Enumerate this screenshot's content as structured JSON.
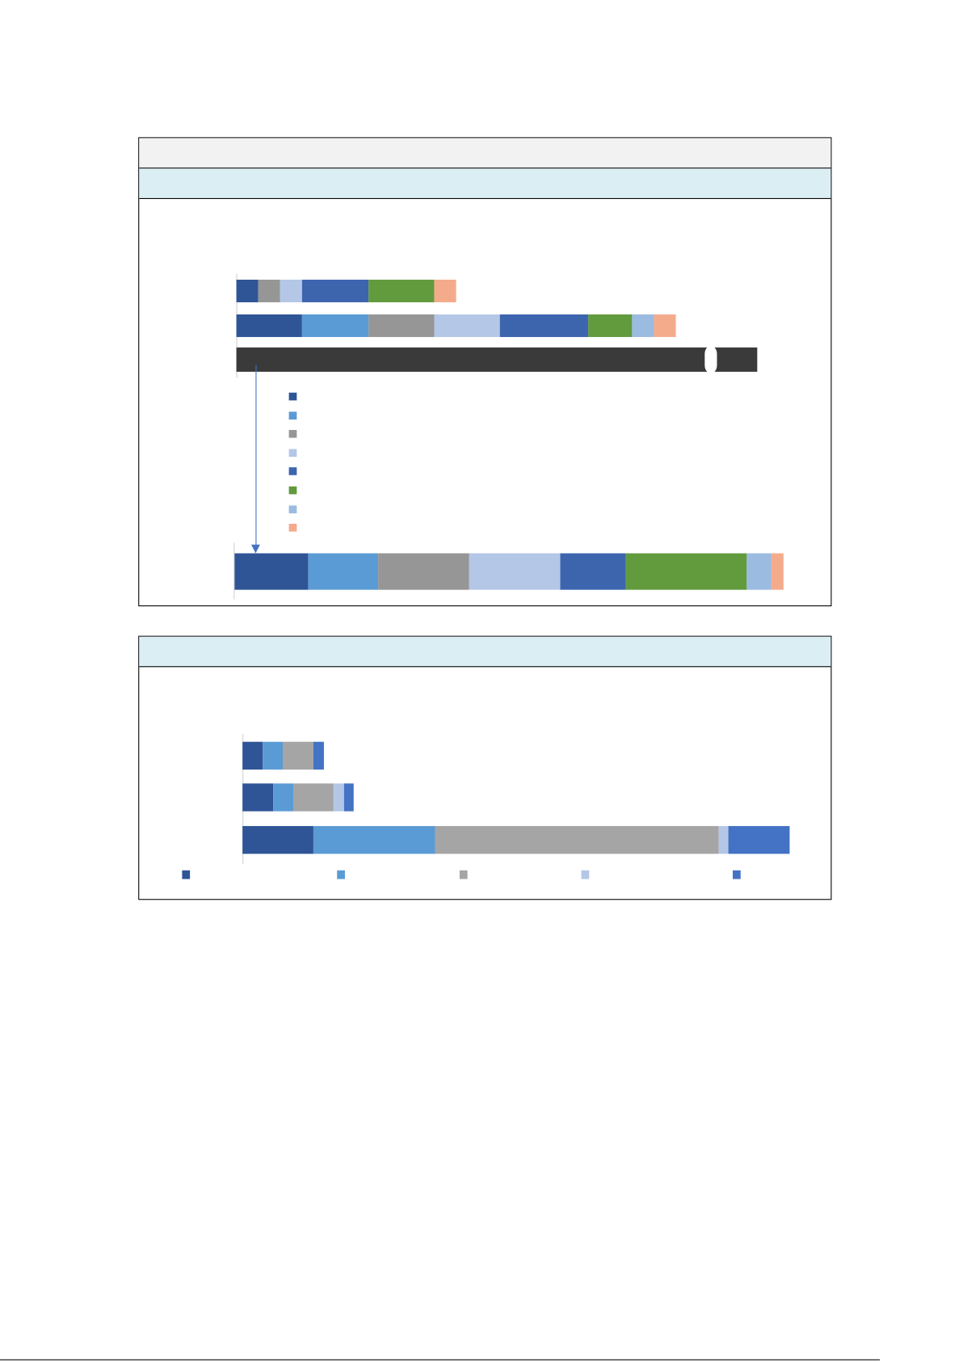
{
  "colors": {
    "s1": "#2F5597",
    "s2": "#5B9BD5",
    "s3": "#969696",
    "s4": "#B4C7E7",
    "s5": "#3D65AE",
    "s6": "#629A3E",
    "s7": "#9BBBE0",
    "s8": "#F4AB8C",
    "total": "#3A3A3A",
    "header_bg": "#F2F2F2",
    "band_bg": "#DBEEF4",
    "c2_s3": "#A5A5A5",
    "c2_s5": "#4472C4",
    "arrow": "#4472C4"
  },
  "chart_data": [
    {
      "type": "bar",
      "orientation": "horizontal-stacked",
      "series_colors": [
        "#2F5597",
        "#5B9BD5",
        "#969696",
        "#B4C7E7",
        "#3D65AE",
        "#629A3E",
        "#9BBBE0",
        "#F4AB8C"
      ],
      "bars": [
        {
          "values": [
            1,
            0,
            1,
            1,
            3,
            3,
            0,
            1
          ]
        },
        {
          "values": [
            3,
            3,
            3,
            3,
            4,
            2,
            1,
            1
          ]
        },
        {
          "values": [
            24
          ],
          "color": "#3A3A3A",
          "axis_break": true
        }
      ],
      "legend_entries": 8,
      "legend_placement": "below",
      "breakdown_bar": {
        "values": [
          84,
          80,
          104,
          104,
          75,
          138,
          28,
          14
        ]
      },
      "grid": false
    },
    {
      "type": "bar",
      "orientation": "horizontal-stacked",
      "series_colors": [
        "#2F5597",
        "#5B9BD5",
        "#A5A5A5",
        "#B4C7E7",
        "#4472C4"
      ],
      "bars": [
        {
          "values": [
            2,
            2,
            3,
            0,
            1
          ]
        },
        {
          "values": [
            3,
            2,
            4,
            1,
            1
          ]
        },
        {
          "values": [
            7,
            12,
            28,
            1,
            6
          ]
        }
      ],
      "legend_entries": 5,
      "legend_placement": "bottom",
      "grid": false
    }
  ]
}
